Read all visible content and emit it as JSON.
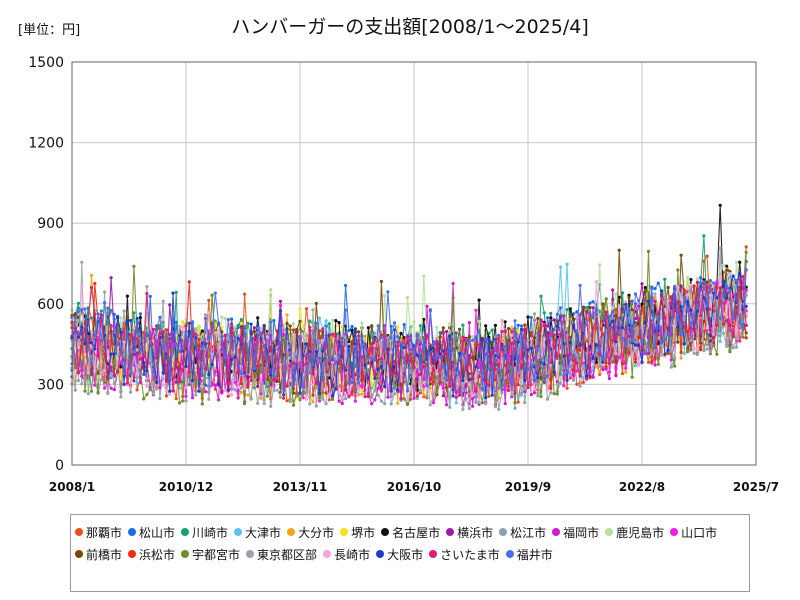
{
  "chart_data": {
    "type": "line",
    "title": "ハンバーガーの支出額[2008/1～2025/4]",
    "unit_label": "[単位：円]",
    "xlabel": "",
    "ylabel": "",
    "ylim": [
      0,
      1500
    ],
    "y_ticks": [
      "0",
      "300",
      "600",
      "900",
      "1200",
      "1500"
    ],
    "x_ticks": [
      "2008/1",
      "2010/12",
      "2013/11",
      "2016/10",
      "2019/9",
      "2022/8",
      "2025/7"
    ],
    "x_start": "2008/1",
    "x_end": "2025/7",
    "grid": true,
    "legend_position": "bottom",
    "series": [
      {
        "name": "那覇市",
        "color": "#e8501c"
      },
      {
        "name": "松山市",
        "color": "#1c6fe0"
      },
      {
        "name": "川崎市",
        "color": "#18a36a"
      },
      {
        "name": "大津市",
        "color": "#5bc3f0"
      },
      {
        "name": "大分市",
        "color": "#f0a51c"
      },
      {
        "name": "堺市",
        "color": "#f5e11c"
      },
      {
        "name": "名古屋市",
        "color": "#111111"
      },
      {
        "name": "横浜市",
        "color": "#9a1ca8"
      },
      {
        "name": "松江市",
        "color": "#8fa0ae"
      },
      {
        "name": "福岡市",
        "color": "#d41ccf"
      },
      {
        "name": "鹿児島市",
        "color": "#b4e09c"
      },
      {
        "name": "山口市",
        "color": "#f01ce0"
      },
      {
        "name": "前橋市",
        "color": "#7a4a06"
      },
      {
        "name": "浜松市",
        "color": "#f02a14"
      },
      {
        "name": "宇都宮市",
        "color": "#6e8c2a"
      },
      {
        "name": "東京都区部",
        "color": "#9aa3ac"
      },
      {
        "name": "長崎市",
        "color": "#f2a5dc"
      },
      {
        "name": "大阪市",
        "color": "#1c3ec8"
      },
      {
        "name": "さいたま市",
        "color": "#e0197a"
      },
      {
        "name": "福井市",
        "color": "#4a6ef0"
      }
    ]
  }
}
